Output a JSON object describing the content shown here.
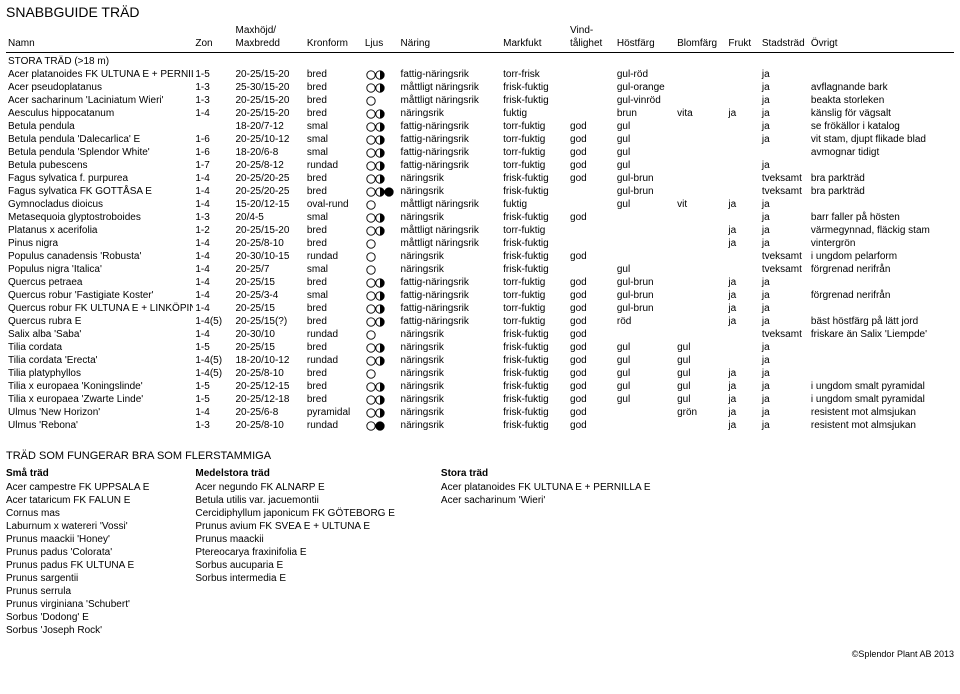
{
  "title": "SNABBGUIDE TRÄD",
  "columns": [
    "Namn",
    "Zon",
    "Maxhöjd/\nMaxbredd",
    "Kronform",
    "Ljus",
    "Näring",
    "Markfukt",
    "Vind-\ntålighet",
    "Höstfärg",
    "Blomfärg",
    "Frukt",
    "Stadsträd",
    "Övrigt"
  ],
  "section_label": "STORA TRÄD (>18 m)",
  "ljus_kind": {
    "OH": "open-half",
    "OOH": "open-open-half",
    "O": "open",
    "OHF": "open-half-filled",
    "OF": "open-filled"
  },
  "rows": [
    {
      "namn": "Acer platanoides FK ULTUNA E + PERNILLA E",
      "zon": "1-5",
      "max": "20-25/15-20",
      "kron": "bred",
      "ljus": "OH",
      "naring": "fattig-näringsrik",
      "mark": "torr-frisk",
      "vind": "",
      "host": "gul-röd",
      "blom": "",
      "frukt": "",
      "stads": "ja",
      "ovrigt": ""
    },
    {
      "namn": "Acer pseudoplatanus",
      "zon": "1-3",
      "max": "25-30/15-20",
      "kron": "bred",
      "ljus": "OH",
      "naring": "måttligt näringsrik",
      "mark": "frisk-fuktig",
      "vind": "",
      "host": "gul-orange",
      "blom": "",
      "frukt": "",
      "stads": "ja",
      "ovrigt": "avflagnande bark"
    },
    {
      "namn": "Acer sacharinum 'Laciniatum Wieri'",
      "zon": "1-3",
      "max": "20-25/15-20",
      "kron": "bred",
      "ljus": "O",
      "naring": "måttligt näringsrik",
      "mark": "frisk-fuktig",
      "vind": "",
      "host": "gul-vinröd",
      "blom": "",
      "frukt": "",
      "stads": "ja",
      "ovrigt": "beakta storleken"
    },
    {
      "namn": "Aesculus hippocatanum",
      "zon": "1-4",
      "max": "20-25/15-20",
      "kron": "bred",
      "ljus": "OH",
      "naring": "näringsrik",
      "mark": "fuktig",
      "vind": "",
      "host": "brun",
      "blom": "vita",
      "frukt": "ja",
      "stads": "ja",
      "ovrigt": "känslig för vägsalt"
    },
    {
      "namn": "Betula pendula",
      "zon": "",
      "max": "18-20/7-12",
      "kron": "smal",
      "ljus": "OH",
      "naring": "fattig-näringsrik",
      "mark": "torr-fuktig",
      "vind": "god",
      "host": "gul",
      "blom": "",
      "frukt": "",
      "stads": "ja",
      "ovrigt": "se frökällor i katalog"
    },
    {
      "namn": "Betula pendula 'Dalecarlica' E",
      "zon": "1-6",
      "max": "20-25/10-12",
      "kron": "smal",
      "ljus": "OH",
      "naring": "fattig-näringsrik",
      "mark": "torr-fuktig",
      "vind": "god",
      "host": "gul",
      "blom": "",
      "frukt": "",
      "stads": "ja",
      "ovrigt": "vit stam, djupt flikade blad"
    },
    {
      "namn": "Betula pendula 'Splendor White'",
      "zon": "1-6",
      "max": "18-20/6-8",
      "kron": "smal",
      "ljus": "OH",
      "naring": "fattig-näringsrik",
      "mark": "torr-fuktig",
      "vind": "god",
      "host": "gul",
      "blom": "",
      "frukt": "",
      "stads": "",
      "ovrigt": "avmognar tidigt"
    },
    {
      "namn": "Betula pubescens",
      "zon": "1-7",
      "max": "20-25/8-12",
      "kron": "rundad",
      "ljus": "OH",
      "naring": "fattig-näringsrik",
      "mark": "torr-fuktig",
      "vind": "god",
      "host": "gul",
      "blom": "",
      "frukt": "",
      "stads": "ja",
      "ovrigt": ""
    },
    {
      "namn": "Fagus sylvatica f. purpurea",
      "zon": "1-4",
      "max": "20-25/20-25",
      "kron": "bred",
      "ljus": "OH",
      "naring": "näringsrik",
      "mark": "frisk-fuktig",
      "vind": "god",
      "host": "gul-brun",
      "blom": "",
      "frukt": "",
      "stads": "tveksamt",
      "ovrigt": "bra parkträd"
    },
    {
      "namn": "Fagus sylvatica FK GOTTÅSA E",
      "zon": "1-4",
      "max": "20-25/20-25",
      "kron": "bred",
      "ljus": "OHF",
      "naring": "näringsrik",
      "mark": "frisk-fuktig",
      "vind": "",
      "host": "gul-brun",
      "blom": "",
      "frukt": "",
      "stads": "tveksamt",
      "ovrigt": "bra parkträd"
    },
    {
      "namn": "Gymnocladus dioicus",
      "zon": "1-4",
      "max": "15-20/12-15",
      "kron": "oval-rund",
      "ljus": "O",
      "naring": "måttligt näringsrik",
      "mark": "fuktig",
      "vind": "",
      "host": "gul",
      "blom": "vit",
      "frukt": "ja",
      "stads": "ja",
      "ovrigt": ""
    },
    {
      "namn": "Metasequoia glyptostroboides",
      "zon": "1-3",
      "max": "20/4-5",
      "kron": "smal",
      "ljus": "OH",
      "naring": "näringsrik",
      "mark": "frisk-fuktig",
      "vind": "god",
      "host": "",
      "blom": "",
      "frukt": "",
      "stads": "ja",
      "ovrigt": "barr faller på hösten"
    },
    {
      "namn": "Platanus x acerifolia",
      "zon": "1-2",
      "max": "20-25/15-20",
      "kron": "bred",
      "ljus": "OH",
      "naring": "måttligt näringsrik",
      "mark": "torr-fuktig",
      "vind": "",
      "host": "",
      "blom": "",
      "frukt": "ja",
      "stads": "ja",
      "ovrigt": "värmegynnad, fläckig stam"
    },
    {
      "namn": "Pinus nigra",
      "zon": "1-4",
      "max": "20-25/8-10",
      "kron": "bred",
      "ljus": "O",
      "naring": "måttligt näringsrik",
      "mark": "frisk-fuktig",
      "vind": "",
      "host": "",
      "blom": "",
      "frukt": "ja",
      "stads": "ja",
      "ovrigt": "vintergrön"
    },
    {
      "namn": "Populus canadensis 'Robusta'",
      "zon": "1-4",
      "max": "20-30/10-15",
      "kron": "rundad",
      "ljus": "O",
      "naring": "näringsrik",
      "mark": "frisk-fuktig",
      "vind": "god",
      "host": "",
      "blom": "",
      "frukt": "",
      "stads": "tveksamt",
      "ovrigt": "i ungdom pelarform"
    },
    {
      "namn": "Populus nigra 'Italica'",
      "zon": "1-4",
      "max": "20-25/7",
      "kron": "smal",
      "ljus": "O",
      "naring": "näringsrik",
      "mark": "frisk-fuktig",
      "vind": "",
      "host": "gul",
      "blom": "",
      "frukt": "",
      "stads": "tveksamt",
      "ovrigt": "förgrenad nerifrån"
    },
    {
      "namn": "Quercus petraea",
      "zon": "1-4",
      "max": "20-25/15",
      "kron": "bred",
      "ljus": "OH",
      "naring": "fattig-näringsrik",
      "mark": "torr-fuktig",
      "vind": "god",
      "host": "gul-brun",
      "blom": "",
      "frukt": "ja",
      "stads": "ja",
      "ovrigt": ""
    },
    {
      "namn": "Quercus robur 'Fastigiate Koster'",
      "zon": "1-4",
      "max": "20-25/3-4",
      "kron": "smal",
      "ljus": "OH",
      "naring": "fattig-näringsrik",
      "mark": "torr-fuktig",
      "vind": "god",
      "host": "gul-brun",
      "blom": "",
      "frukt": "ja",
      "stads": "ja",
      "ovrigt": "förgrenad nerifrån"
    },
    {
      "namn": "Quercus robur FK ULTUNA E + LINKÖPING E",
      "zon": "1-4",
      "max": "20-25/15",
      "kron": "bred",
      "ljus": "OH",
      "naring": "fattig-näringsrik",
      "mark": "torr-fuktig",
      "vind": "god",
      "host": "gul-brun",
      "blom": "",
      "frukt": "ja",
      "stads": "ja",
      "ovrigt": ""
    },
    {
      "namn": "Quercus rubra E",
      "zon": "1-4(5)",
      "max": "20-25/15(?)",
      "kron": "bred",
      "ljus": "OH",
      "naring": "fattig-näringsrik",
      "mark": "torr-fuktig",
      "vind": "god",
      "host": "röd",
      "blom": "",
      "frukt": "ja",
      "stads": "ja",
      "ovrigt": "bäst höstfärg på lätt jord"
    },
    {
      "namn": "Salix alba 'Saba'",
      "zon": "1-4",
      "max": "20-30/10",
      "kron": "rundad",
      "ljus": "O",
      "naring": "näringsrik",
      "mark": "frisk-fuktig",
      "vind": "god",
      "host": "",
      "blom": "",
      "frukt": "",
      "stads": "tveksamt",
      "ovrigt": "friskare än Salix 'Liempde'"
    },
    {
      "namn": "Tilia cordata",
      "zon": "1-5",
      "max": "20-25/15",
      "kron": "bred",
      "ljus": "OH",
      "naring": "näringsrik",
      "mark": "frisk-fuktig",
      "vind": "god",
      "host": "gul",
      "blom": "gul",
      "frukt": "",
      "stads": "ja",
      "ovrigt": ""
    },
    {
      "namn": "Tilia cordata 'Erecta'",
      "zon": "1-4(5)",
      "max": "18-20/10-12",
      "kron": "rundad",
      "ljus": "OH",
      "naring": "näringsrik",
      "mark": "frisk-fuktig",
      "vind": "god",
      "host": "gul",
      "blom": "gul",
      "frukt": "",
      "stads": "ja",
      "ovrigt": ""
    },
    {
      "namn": "Tilia platyphyllos",
      "zon": "1-4(5)",
      "max": "20-25/8-10",
      "kron": "bred",
      "ljus": "O",
      "naring": "näringsrik",
      "mark": "frisk-fuktig",
      "vind": "god",
      "host": "gul",
      "blom": "gul",
      "frukt": "ja",
      "stads": "ja",
      "ovrigt": ""
    },
    {
      "namn": "Tilia x europaea 'Koningslinde'",
      "zon": "1-5",
      "max": "20-25/12-15",
      "kron": "bred",
      "ljus": "OH",
      "naring": "näringsrik",
      "mark": "frisk-fuktig",
      "vind": "god",
      "host": "gul",
      "blom": "gul",
      "frukt": "ja",
      "stads": "ja",
      "ovrigt": "i ungdom smalt pyramidal"
    },
    {
      "namn": "Tilia x europaea 'Zwarte Linde'",
      "zon": "1-5",
      "max": "20-25/12-18",
      "kron": "bred",
      "ljus": "OH",
      "naring": "näringsrik",
      "mark": "frisk-fuktig",
      "vind": "god",
      "host": "gul",
      "blom": "gul",
      "frukt": "ja",
      "stads": "ja",
      "ovrigt": "i ungdom smalt pyramidal"
    },
    {
      "namn": "Ulmus 'New Horizon'",
      "zon": "1-4",
      "max": "20-25/6-8",
      "kron": "pyramidal",
      "ljus": "OH",
      "naring": "näringsrik",
      "mark": "frisk-fuktig",
      "vind": "god",
      "host": "",
      "blom": "grön",
      "frukt": "ja",
      "stads": "ja",
      "ovrigt": "resistent mot almsjukan"
    },
    {
      "namn": "Ulmus 'Rebona'",
      "zon": "1-3",
      "max": "20-25/8-10",
      "kron": "rundad",
      "ljus": "OF",
      "naring": "näringsrik",
      "mark": "frisk-fuktig",
      "vind": "god",
      "host": "",
      "blom": "",
      "frukt": "ja",
      "stads": "ja",
      "ovrigt": "resistent mot almsjukan"
    }
  ],
  "multi": {
    "title": "TRÄD SOM FUNGERAR BRA SOM FLERSTAMMIGA",
    "cols": [
      {
        "heading": "Små träd",
        "items": [
          "Acer campestre FK UPPSALA E",
          "Acer tataricum FK FALUN E",
          "Cornus mas",
          "Laburnum x watereri 'Vossi'",
          "Prunus maackii 'Honey'",
          "Prunus padus 'Colorata'",
          "Prunus padus FK ULTUNA E",
          "Prunus sargentii",
          "Prunus serrula",
          "Prunus virginiana 'Schubert'",
          "Sorbus 'Dodong' E",
          "Sorbus 'Joseph Rock'"
        ]
      },
      {
        "heading": "Medelstora träd",
        "items": [
          "Acer negundo FK ALNARP E",
          "Betula utilis var. jacuemontii",
          "Cercidiphyllum japonicum FK GÖTEBORG E",
          "Prunus avium FK SVEA E + ULTUNA E",
          "Prunus maackii",
          "Ptereocarya fraxinifolia E",
          "Sorbus aucuparia E",
          "Sorbus intermedia E"
        ]
      },
      {
        "heading": "Stora träd",
        "items": [
          "Acer platanoides FK ULTUNA E + PERNILLA E",
          "Acer sacharinum 'Wieri'"
        ]
      }
    ]
  },
  "footer": "©Splendor Plant AB 2013"
}
